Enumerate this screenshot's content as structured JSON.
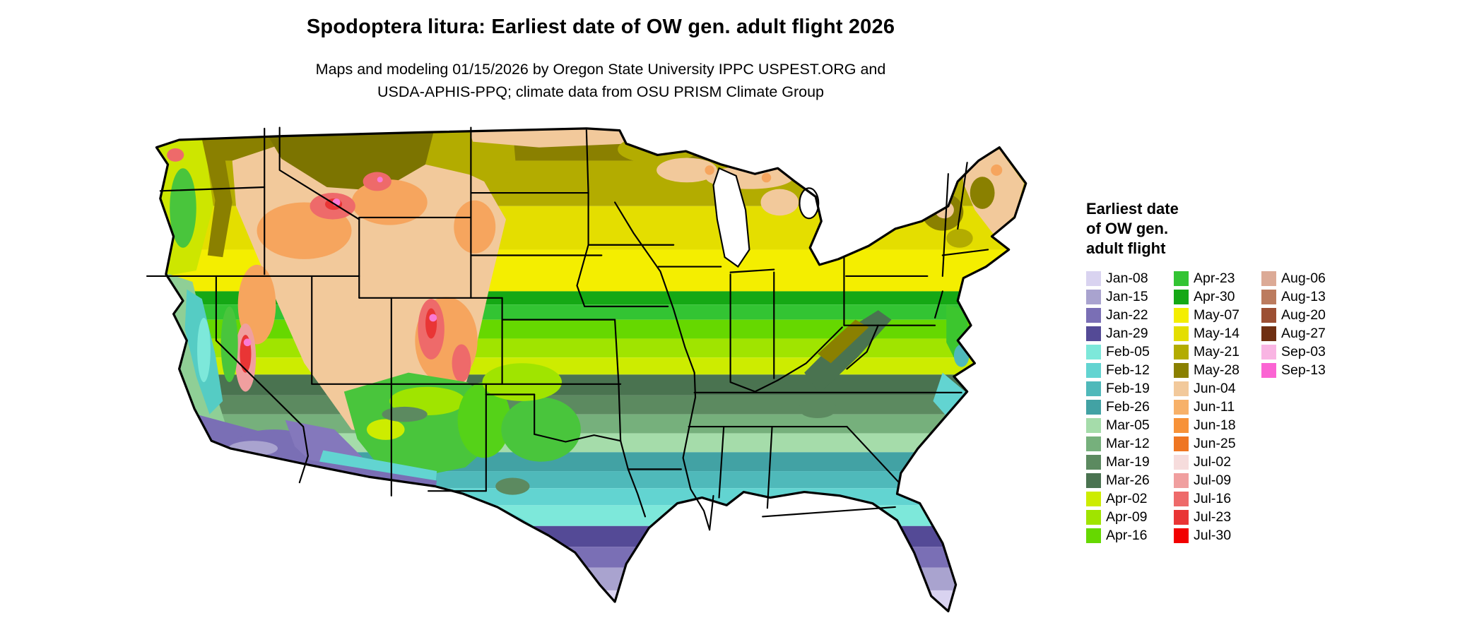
{
  "header": {
    "title": "Spodoptera litura: Earliest date of OW gen. adult flight 2026",
    "subtitle_line1": "Maps and modeling 01/15/2026 by Oregon State University IPPC USPEST.ORG and",
    "subtitle_line2": "USDA-APHIS-PPQ; climate data from OSU PRISM Climate Group"
  },
  "map": {
    "type": "choropleth raster map",
    "region": "Contiguous United States"
  },
  "legend": {
    "title_lines": [
      "Earliest date",
      "of OW gen.",
      "adult flight"
    ],
    "columns": [
      [
        {
          "label": "Jan-08",
          "color": "#d9d3f0"
        },
        {
          "label": "Jan-15",
          "color": "#a9a3cf"
        },
        {
          "label": "Jan-22",
          "color": "#7a6fb5"
        },
        {
          "label": "Jan-29",
          "color": "#544a96"
        },
        {
          "label": "Feb-05",
          "color": "#7de8da"
        },
        {
          "label": "Feb-12",
          "color": "#62d4d1"
        },
        {
          "label": "Feb-19",
          "color": "#4fb9ba"
        },
        {
          "label": "Feb-26",
          "color": "#42a2a4"
        },
        {
          "label": "Mar-05",
          "color": "#a5dcaa"
        },
        {
          "label": "Mar-12",
          "color": "#76b07c"
        },
        {
          "label": "Mar-19",
          "color": "#5c8a60"
        },
        {
          "label": "Mar-26",
          "color": "#4a7350"
        },
        {
          "label": "Apr-02",
          "color": "#cdec00"
        },
        {
          "label": "Apr-09",
          "color": "#a0e400"
        },
        {
          "label": "Apr-16",
          "color": "#66d800"
        }
      ],
      [
        {
          "label": "Apr-23",
          "color": "#33c433"
        },
        {
          "label": "Apr-30",
          "color": "#15a815"
        },
        {
          "label": "May-07",
          "color": "#f4ee00"
        },
        {
          "label": "May-14",
          "color": "#e4de00"
        },
        {
          "label": "May-21",
          "color": "#b3ac00"
        },
        {
          "label": "May-28",
          "color": "#8a8000"
        },
        {
          "label": "Jun-04",
          "color": "#f2c99b"
        },
        {
          "label": "Jun-11",
          "color": "#f7b169"
        },
        {
          "label": "Jun-18",
          "color": "#f79238"
        },
        {
          "label": "Jun-25",
          "color": "#ef7622"
        },
        {
          "label": "Jul-02",
          "color": "#f6dcdc"
        },
        {
          "label": "Jul-09",
          "color": "#f09f9f"
        },
        {
          "label": "Jul-16",
          "color": "#ee6a6a"
        },
        {
          "label": "Jul-23",
          "color": "#e93535"
        },
        {
          "label": "Jul-30",
          "color": "#f20000"
        }
      ],
      [
        {
          "label": "Aug-06",
          "color": "#dcaa96"
        },
        {
          "label": "Aug-13",
          "color": "#bc7b5e"
        },
        {
          "label": "Aug-20",
          "color": "#9c4f33"
        },
        {
          "label": "Aug-27",
          "color": "#6f2f12"
        },
        {
          "label": "Sep-03",
          "color": "#f9b5e3"
        },
        {
          "label": "Sep-13",
          "color": "#fb64d3"
        }
      ]
    ]
  }
}
